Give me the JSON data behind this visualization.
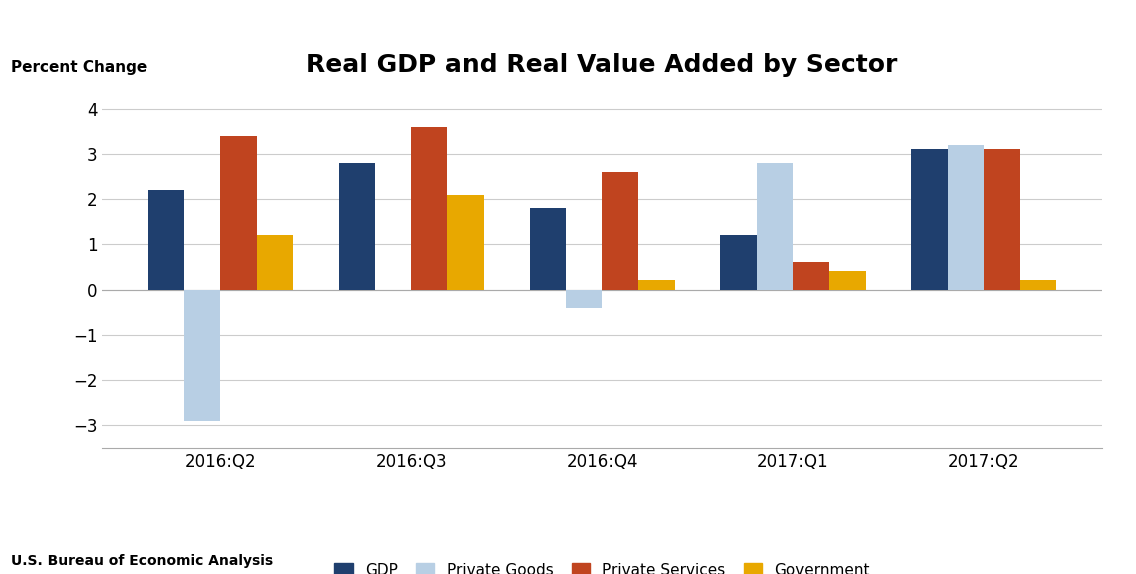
{
  "title": "Real GDP and Real Value Added by Sector",
  "ylabel": "Percent Change",
  "source": "U.S. Bureau of Economic Analysis",
  "categories": [
    "2016:Q2",
    "2016:Q3",
    "2016:Q4",
    "2017:Q1",
    "2017:Q2"
  ],
  "series": {
    "GDP": [
      2.2,
      2.8,
      1.8,
      1.2,
      3.1
    ],
    "Private Goods": [
      -2.9,
      0.0,
      -0.4,
      2.8,
      3.2
    ],
    "Private Services": [
      3.4,
      3.6,
      2.6,
      0.6,
      3.1
    ],
    "Government": [
      1.2,
      2.1,
      0.2,
      0.4,
      0.2
    ]
  },
  "colors": {
    "GDP": "#1f3f6e",
    "Private Goods": "#b8cfe4",
    "Private Services": "#c0441f",
    "Government": "#e8a800"
  },
  "ylim": [
    -3.5,
    4.5
  ],
  "yticks": [
    -3,
    -2,
    -1,
    0,
    1,
    2,
    3,
    4
  ],
  "bar_width": 0.19,
  "background_color": "#ffffff",
  "grid_color": "#cccccc",
  "title_fontsize": 18,
  "ylabel_fontsize": 11,
  "tick_fontsize": 12,
  "legend_fontsize": 11,
  "source_fontsize": 10
}
